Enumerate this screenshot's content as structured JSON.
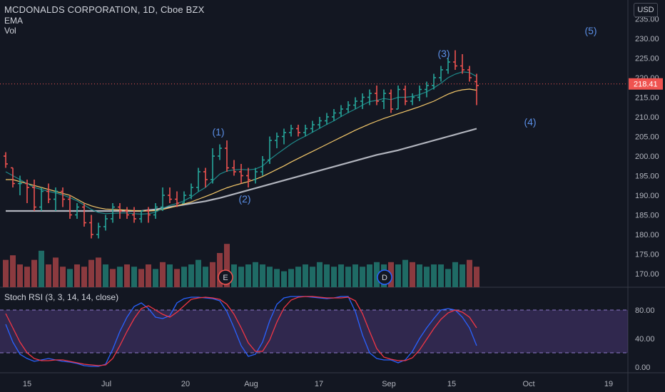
{
  "header": {
    "title": "MCDONALDS CORPORATION, 1D, Cboe BZX",
    "ema_label": "EMA",
    "vol_label": "Vol",
    "currency": "USD"
  },
  "price_axis": {
    "ticks": [
      "235.00",
      "230.00",
      "225.00",
      "220.00",
      "215.00",
      "210.00",
      "205.00",
      "200.00",
      "195.00",
      "190.00",
      "185.00",
      "180.00",
      "175.00",
      "170.00"
    ],
    "last_price": "218.41"
  },
  "rsi_panel": {
    "label": "Stoch RSI (3, 3, 14, 14, close)",
    "ticks": [
      "80.00",
      "40.00",
      "0.00"
    ]
  },
  "time_axis": {
    "labels": [
      "15",
      "Jul",
      "20",
      "Aug",
      "17",
      "Sep",
      "15",
      "Oct",
      "19"
    ]
  },
  "annotations": {
    "waves": [
      "(1)",
      "(2)",
      "(3)",
      "(4)",
      "(5)"
    ]
  },
  "events": {
    "earnings": "E",
    "dividend": "D"
  },
  "colors": {
    "background": "#131722",
    "up": "#26a69a",
    "down": "#ef5350",
    "ema_slow": "#b2b5be",
    "ema_mid": "#f4c86a",
    "ema_fast": "#1f8a8a",
    "rsi_k": "#2962ff",
    "rsi_d": "#f23645",
    "rsi_band": "#7e57c2",
    "wave_label": "#2962ff"
  },
  "chart_data": {
    "type": "ohlc",
    "ylim": [
      166,
      238
    ],
    "bars": [
      [
        200,
        201,
        197,
        198
      ],
      [
        197,
        197,
        192,
        193
      ],
      [
        193,
        195,
        190,
        193
      ],
      [
        193,
        194,
        188,
        192
      ],
      [
        192,
        194,
        186,
        187
      ],
      [
        187,
        192,
        186,
        191
      ],
      [
        191,
        193,
        188,
        189
      ],
      [
        189,
        192,
        186,
        191
      ],
      [
        191,
        192,
        187,
        189
      ],
      [
        189,
        190,
        184,
        185
      ],
      [
        185,
        188,
        184,
        187
      ],
      [
        187,
        188,
        182,
        183
      ],
      [
        183,
        185,
        179,
        180
      ],
      [
        180,
        183,
        179,
        182
      ],
      [
        182,
        185,
        181,
        184
      ],
      [
        184,
        188,
        183,
        187
      ],
      [
        187,
        188,
        184,
        186
      ],
      [
        186,
        187,
        184,
        185
      ],
      [
        185,
        187,
        183,
        184
      ],
      [
        184,
        186,
        183,
        186
      ],
      [
        186,
        187,
        183,
        185
      ],
      [
        185,
        188,
        184,
        187
      ],
      [
        187,
        192,
        186,
        190
      ],
      [
        190,
        192,
        188,
        189
      ],
      [
        189,
        191,
        187,
        188
      ],
      [
        188,
        191,
        188,
        190
      ],
      [
        190,
        193,
        189,
        192
      ],
      [
        192,
        197,
        191,
        196
      ],
      [
        196,
        197,
        192,
        194
      ],
      [
        194,
        202,
        193,
        200
      ],
      [
        200,
        203,
        199,
        202
      ],
      [
        202,
        204,
        196,
        197
      ],
      [
        197,
        199,
        195,
        196
      ],
      [
        196,
        198,
        193,
        195
      ],
      [
        195,
        197,
        192,
        194
      ],
      [
        194,
        197,
        193,
        196
      ],
      [
        196,
        200,
        195,
        199
      ],
      [
        199,
        205,
        198,
        204
      ],
      [
        204,
        206,
        202,
        205
      ],
      [
        205,
        207,
        203,
        206
      ],
      [
        206,
        208,
        205,
        207
      ],
      [
        207,
        208,
        205,
        206
      ],
      [
        206,
        208,
        205,
        207
      ],
      [
        207,
        209,
        206,
        208
      ],
      [
        208,
        210,
        207,
        209
      ],
      [
        209,
        211,
        208,
        210
      ],
      [
        210,
        212,
        209,
        211
      ],
      [
        211,
        213,
        210,
        212
      ],
      [
        212,
        214,
        211,
        213
      ],
      [
        213,
        215,
        212,
        214
      ],
      [
        214,
        216,
        212,
        215
      ],
      [
        215,
        217,
        213,
        216
      ],
      [
        216,
        218,
        213,
        214
      ],
      [
        214,
        217,
        212,
        216
      ],
      [
        216,
        217,
        211,
        212
      ],
      [
        212,
        218,
        212,
        217
      ],
      [
        217,
        218,
        213,
        214
      ],
      [
        214,
        216,
        213,
        215
      ],
      [
        215,
        218,
        214,
        217
      ],
      [
        217,
        219,
        215,
        218
      ],
      [
        218,
        221,
        217,
        220
      ],
      [
        220,
        223,
        219,
        222
      ],
      [
        222,
        225,
        221,
        224
      ],
      [
        224,
        227,
        222,
        223
      ],
      [
        223,
        226,
        221,
        222
      ],
      [
        222,
        223,
        219,
        220
      ],
      [
        219,
        221,
        213,
        218
      ]
    ],
    "volumes": [
      [
        12,
        "down"
      ],
      [
        14,
        "down"
      ],
      [
        10,
        "down"
      ],
      [
        9,
        "down"
      ],
      [
        12,
        "down"
      ],
      [
        16,
        "up"
      ],
      [
        10,
        "down"
      ],
      [
        13,
        "down"
      ],
      [
        9,
        "down"
      ],
      [
        8,
        "up"
      ],
      [
        10,
        "down"
      ],
      [
        9,
        "down"
      ],
      [
        12,
        "down"
      ],
      [
        13,
        "down"
      ],
      [
        10,
        "up"
      ],
      [
        8,
        "down"
      ],
      [
        9,
        "up"
      ],
      [
        10,
        "down"
      ],
      [
        9,
        "up"
      ],
      [
        8,
        "down"
      ],
      [
        10,
        "down"
      ],
      [
        8,
        "up"
      ],
      [
        11,
        "down"
      ],
      [
        10,
        "up"
      ],
      [
        8,
        "down"
      ],
      [
        9,
        "up"
      ],
      [
        10,
        "up"
      ],
      [
        12,
        "up"
      ],
      [
        9,
        "up"
      ],
      [
        11,
        "down"
      ],
      [
        15,
        "down"
      ],
      [
        19,
        "down"
      ],
      [
        10,
        "up"
      ],
      [
        9,
        "up"
      ],
      [
        10,
        "up"
      ],
      [
        11,
        "up"
      ],
      [
        10,
        "up"
      ],
      [
        9,
        "up"
      ],
      [
        8,
        "up"
      ],
      [
        7,
        "up"
      ],
      [
        8,
        "up"
      ],
      [
        9,
        "up"
      ],
      [
        10,
        "up"
      ],
      [
        9,
        "up"
      ],
      [
        11,
        "up"
      ],
      [
        10,
        "up"
      ],
      [
        9,
        "up"
      ],
      [
        10,
        "up"
      ],
      [
        9,
        "up"
      ],
      [
        10,
        "up"
      ],
      [
        9,
        "up"
      ],
      [
        10,
        "up"
      ],
      [
        11,
        "up"
      ],
      [
        10,
        "up"
      ],
      [
        11,
        "down"
      ],
      [
        10,
        "up"
      ],
      [
        12,
        "up"
      ],
      [
        11,
        "down"
      ],
      [
        10,
        "up"
      ],
      [
        9,
        "up"
      ],
      [
        10,
        "up"
      ],
      [
        10,
        "up"
      ],
      [
        8,
        "up"
      ],
      [
        11,
        "up"
      ],
      [
        10,
        "up"
      ],
      [
        12,
        "down"
      ],
      [
        9,
        "down"
      ]
    ],
    "ema_slow": [
      186,
      186,
      186,
      186,
      186,
      186,
      186,
      186,
      186,
      186,
      186,
      186,
      186,
      186,
      186,
      186,
      186,
      186,
      186,
      186,
      186.2,
      186.4,
      186.7,
      187,
      187.3,
      187.6,
      187.9,
      188.2,
      188.5,
      188.9,
      189.3,
      189.8,
      190.3,
      190.8,
      191.3,
      191.8,
      192.3,
      192.8,
      193.3,
      193.8,
      194.3,
      194.8,
      195.3,
      195.8,
      196.3,
      196.8,
      197.3,
      197.8,
      198.3,
      198.8,
      199.3,
      199.8,
      200.3,
      200.7,
      201.1,
      201.5,
      202,
      202.5,
      203,
      203.5,
      204,
      204.5,
      205,
      205.5,
      206,
      206.5,
      207
    ],
    "ema_mid": [
      194,
      194,
      193.5,
      193,
      192.5,
      192,
      191.5,
      191,
      190.5,
      190,
      189,
      188,
      187.3,
      186.8,
      186.5,
      186.4,
      186.3,
      186.2,
      186.1,
      186,
      186,
      186.1,
      186.4,
      186.8,
      187.3,
      187.8,
      188.3,
      189,
      189.7,
      190.4,
      191.2,
      191.9,
      192.5,
      193,
      193.5,
      194.1,
      194.8,
      195.7,
      196.6,
      197.5,
      198.5,
      199.4,
      200.3,
      201.2,
      202.1,
      203,
      203.9,
      204.8,
      205.7,
      206.6,
      207.4,
      208.2,
      208.9,
      209.6,
      210.2,
      210.8,
      211.4,
      212,
      212.6,
      213.3,
      214,
      214.9,
      215.8,
      216.5,
      216.9,
      217.1,
      216.8
    ],
    "ema_fast": [
      196,
      195,
      194,
      193,
      192,
      191.5,
      191,
      190.6,
      190.1,
      189.4,
      188.6,
      187.5,
      186.4,
      185.6,
      185.3,
      185.4,
      185.5,
      185.5,
      185.3,
      185.2,
      185.3,
      185.7,
      186.7,
      187.4,
      187.9,
      188.6,
      189.6,
      190.9,
      192,
      193.7,
      195.4,
      196.2,
      196.5,
      196.6,
      196.5,
      196.7,
      197.5,
      199.1,
      200.5,
      201.8,
      203.1,
      204.2,
      205.1,
      206.1,
      207.1,
      208.1,
      209,
      210.1,
      211.1,
      212,
      213,
      213.9,
      214.2,
      214.7,
      214.4,
      215,
      215,
      215.2,
      215.7,
      216.4,
      217.4,
      218.6,
      220,
      220.9,
      221.5,
      221.3,
      220.3
    ],
    "rsi_k": [
      60,
      35,
      18,
      12,
      8,
      10,
      12,
      10,
      8,
      7,
      5,
      2,
      1,
      1,
      4,
      25,
      50,
      70,
      85,
      90,
      82,
      70,
      68,
      72,
      90,
      96,
      98,
      98,
      97,
      96,
      93,
      78,
      55,
      30,
      15,
      18,
      35,
      65,
      88,
      97,
      99,
      99,
      99,
      98,
      97,
      96,
      97,
      99,
      99,
      78,
      45,
      20,
      12,
      10,
      10,
      6,
      10,
      22,
      40,
      55,
      68,
      80,
      82,
      80,
      70,
      55,
      30
    ],
    "rsi_d": [
      75,
      55,
      35,
      20,
      12,
      9,
      9,
      10,
      10,
      8,
      6,
      4,
      3,
      2,
      3,
      12,
      30,
      50,
      68,
      82,
      86,
      80,
      74,
      70,
      77,
      86,
      95,
      97,
      98,
      97,
      95,
      88,
      74,
      55,
      34,
      22,
      22,
      38,
      63,
      83,
      94,
      98,
      99,
      99,
      98,
      97,
      97,
      97,
      98,
      93,
      75,
      50,
      26,
      14,
      11,
      9,
      9,
      13,
      24,
      39,
      54,
      67,
      76,
      80,
      77,
      70,
      55
    ]
  }
}
